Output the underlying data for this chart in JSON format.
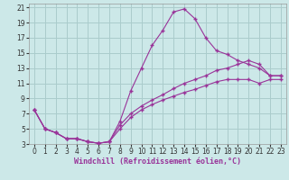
{
  "xlabel": "Windchill (Refroidissement éolien,°C)",
  "bg_color": "#cce8e8",
  "line_color": "#993399",
  "grid_color": "#aacccc",
  "xlim": [
    -0.5,
    23.5
  ],
  "ylim": [
    3,
    21.5
  ],
  "xticks": [
    0,
    1,
    2,
    3,
    4,
    5,
    6,
    7,
    8,
    9,
    10,
    11,
    12,
    13,
    14,
    15,
    16,
    17,
    18,
    19,
    20,
    21,
    22,
    23
  ],
  "yticks": [
    3,
    5,
    7,
    9,
    11,
    13,
    15,
    17,
    19,
    21
  ],
  "line1_x": [
    0,
    1,
    2,
    3,
    4,
    5,
    6,
    7,
    8,
    9,
    10,
    11,
    12,
    13,
    14,
    15,
    16,
    17,
    18,
    19,
    20,
    21,
    22,
    23
  ],
  "line1_y": [
    7.5,
    5.0,
    4.5,
    3.7,
    3.7,
    3.3,
    3.1,
    3.3,
    6.0,
    10.0,
    13.0,
    16.0,
    18.0,
    20.4,
    20.8,
    19.5,
    17.0,
    15.3,
    14.8,
    14.0,
    13.5,
    13.0,
    12.0,
    12.0
  ],
  "line2_x": [
    0,
    1,
    2,
    3,
    4,
    5,
    6,
    7,
    8,
    9,
    10,
    11,
    12,
    13,
    14,
    15,
    16,
    17,
    18,
    19,
    20,
    21,
    22,
    23
  ],
  "line2_y": [
    7.5,
    5.0,
    4.5,
    3.7,
    3.7,
    3.3,
    3.1,
    3.3,
    5.5,
    7.0,
    8.0,
    8.8,
    9.5,
    10.3,
    11.0,
    11.5,
    12.0,
    12.7,
    13.0,
    13.5,
    14.0,
    13.5,
    12.0,
    12.0
  ],
  "line3_x": [
    0,
    1,
    2,
    3,
    4,
    5,
    6,
    7,
    8,
    9,
    10,
    11,
    12,
    13,
    14,
    15,
    16,
    17,
    18,
    19,
    20,
    21,
    22,
    23
  ],
  "line3_y": [
    7.5,
    5.0,
    4.5,
    3.7,
    3.7,
    3.3,
    3.1,
    3.3,
    5.0,
    6.5,
    7.5,
    8.2,
    8.8,
    9.3,
    9.8,
    10.2,
    10.7,
    11.2,
    11.5,
    11.5,
    11.5,
    11.0,
    11.5,
    11.5
  ],
  "tick_fontsize": 5.5,
  "xlabel_fontsize": 6.0,
  "marker_size": 2.5,
  "lw": 0.8
}
